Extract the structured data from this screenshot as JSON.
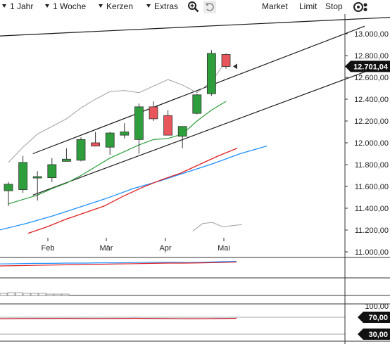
{
  "toolbar": {
    "period": "1 Jahr",
    "interval": "1 Woche",
    "chart_type": "Kerzen",
    "extras": "Extras",
    "order_buttons": [
      "Market",
      "Limit",
      "Stop"
    ],
    "icons": [
      "zoom-icon",
      "undo-icon",
      "settings-icon"
    ]
  },
  "chart_data": [
    {
      "type": "candlestick",
      "interval": "weekly",
      "x_labels": [
        "Feb",
        "Mär",
        "Apr",
        "Mai"
      ],
      "ylim": [
        11000,
        13100
      ],
      "y_ticks": [
        "11.000,00",
        "11.200,00",
        "11.400,00",
        "11.600,00",
        "11.800,00",
        "12.000,00",
        "12.200,00",
        "12.400,00",
        "12.600,00",
        "12.800,00",
        "13.000,00"
      ],
      "y_tick_values": [
        11000,
        11200,
        11400,
        11600,
        11800,
        12000,
        12200,
        12400,
        12600,
        12800,
        13000
      ],
      "last_price": 12701.04,
      "last_price_label": "12.701,04",
      "candles": [
        {
          "o": 11560,
          "h": 11640,
          "l": 11420,
          "c": 11620
        },
        {
          "o": 11570,
          "h": 11880,
          "l": 11540,
          "c": 11820
        },
        {
          "o": 11690,
          "h": 11740,
          "l": 11470,
          "c": 11690
        },
        {
          "o": 11680,
          "h": 11860,
          "l": 11640,
          "c": 11800
        },
        {
          "o": 11830,
          "h": 11950,
          "l": 11830,
          "c": 11850
        },
        {
          "o": 11840,
          "h": 12050,
          "l": 11830,
          "c": 12030
        },
        {
          "o": 12000,
          "h": 12100,
          "l": 11980,
          "c": 11970
        },
        {
          "o": 11960,
          "h": 12100,
          "l": 11890,
          "c": 12090
        },
        {
          "o": 12070,
          "h": 12180,
          "l": 12040,
          "c": 12100
        },
        {
          "o": 12030,
          "h": 12360,
          "l": 11900,
          "c": 12330
        },
        {
          "o": 12330,
          "h": 12380,
          "l": 12200,
          "c": 12220
        },
        {
          "o": 12250,
          "h": 12300,
          "l": 12070,
          "c": 12070
        },
        {
          "o": 12060,
          "h": 12150,
          "l": 11950,
          "c": 12150
        },
        {
          "o": 12270,
          "h": 12450,
          "l": 12260,
          "c": 12440
        },
        {
          "o": 12450,
          "h": 12850,
          "l": 12430,
          "c": 12820
        },
        {
          "o": 12810,
          "h": 12820,
          "l": 12680,
          "c": 12700
        }
      ],
      "moving_average_green": [
        11440,
        11480,
        11520,
        11580,
        11630,
        11700,
        11780,
        11860,
        11920,
        11980,
        12030,
        12040,
        12080,
        12200,
        12300,
        12380
      ],
      "upper_band_grey": [
        11820,
        11960,
        12080,
        12150,
        12220,
        12320,
        12400,
        12470,
        12480,
        12460,
        12520,
        12580,
        12530,
        12460,
        12560,
        12750
      ],
      "lower_grey": [
        11190,
        11260,
        11270,
        11230,
        11240,
        11250
      ],
      "moving_average_blue": [
        11200,
        11260,
        11330,
        11410,
        11490,
        11580,
        11650,
        11730,
        11810,
        11900,
        11970
      ],
      "moving_average_red": [
        11170,
        11230,
        11300,
        11360,
        11420,
        11510,
        11590,
        11660,
        11720,
        11800,
        11880,
        11950
      ],
      "trendlines": [
        {
          "from": [
            0,
            12980
          ],
          "to": [
            20,
            13150
          ]
        },
        {
          "from": [
            1,
            11900
          ],
          "to": [
            20,
            13070
          ]
        },
        {
          "from": [
            1,
            11520
          ],
          "to": [
            20,
            12650
          ]
        }
      ]
    },
    {
      "type": "line",
      "panel": "indicator-1",
      "series": [
        {
          "color": "#1e90ff",
          "values": [
            42,
            43,
            44,
            44,
            45,
            45,
            46,
            46,
            47,
            48,
            48,
            47,
            48,
            50,
            51
          ]
        },
        {
          "color": "#e02020",
          "values": [
            35,
            36,
            37,
            38,
            39,
            40,
            41,
            42,
            43,
            44,
            45,
            45,
            46,
            47,
            49
          ]
        }
      ]
    },
    {
      "type": "bar",
      "panel": "volume",
      "values": [
        3,
        4,
        4,
        3,
        3,
        3,
        2,
        2,
        2
      ]
    },
    {
      "type": "line",
      "panel": "rsi",
      "y_ticks": [
        "100,00",
        "70,00",
        "30,00"
      ],
      "ylim": [
        0,
        100
      ],
      "series": [
        {
          "color": "#1e90ff",
          "values": [
            52,
            54,
            56,
            55,
            57,
            55,
            54,
            56,
            58,
            55,
            54,
            52,
            53,
            56,
            58
          ]
        },
        {
          "color": "#e02020",
          "values": [
            54,
            55,
            55,
            56,
            56,
            55,
            55,
            56,
            57,
            56,
            55,
            54,
            54,
            55,
            57
          ]
        }
      ]
    }
  ],
  "colors": {
    "bull": "#2e9e3c",
    "bear": "#e8555a",
    "blue": "#1e90ff",
    "red": "#e02020",
    "green_ma": "#2e9e3c",
    "grey_band": "#a0a0a0"
  }
}
